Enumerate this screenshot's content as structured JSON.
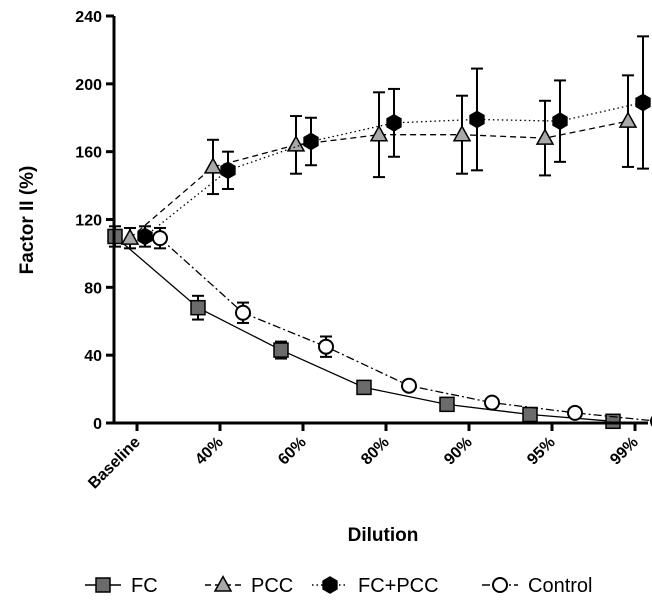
{
  "chart_data": {
    "type": "line",
    "title": "",
    "xlabel": "Dilution",
    "ylabel": "Factor II (%)",
    "ylim": [
      0,
      240
    ],
    "yticks": [
      "0",
      "40",
      "80",
      "120",
      "160",
      "200",
      "240"
    ],
    "categories": [
      "Baseline",
      "40%",
      "60%",
      "80%",
      "90%",
      "95%",
      "99%"
    ],
    "grid": false,
    "legend_position": "bottom",
    "series": [
      {
        "name": "FC",
        "marker": "square",
        "fill": "#6b6b6b",
        "dash": "solid",
        "values": [
          110,
          68,
          43,
          21,
          11,
          5,
          1
        ],
        "errors": [
          6,
          7,
          5,
          2,
          2,
          2,
          1
        ]
      },
      {
        "name": "PCC",
        "marker": "triangle",
        "fill": "#a8a8a8",
        "dash": "dashed",
        "values": [
          109,
          151,
          164,
          170,
          170,
          168,
          178
        ],
        "errors": [
          6,
          16,
          17,
          25,
          23,
          22,
          27
        ]
      },
      {
        "name": "FC+PCC",
        "marker": "hexagon",
        "fill": "#000000",
        "dash": "dotted",
        "values": [
          110,
          149,
          166,
          177,
          179,
          178,
          189
        ],
        "errors": [
          6,
          11,
          14,
          20,
          30,
          24,
          39
        ]
      },
      {
        "name": "Control",
        "marker": "circle",
        "fill": "#ffffff",
        "dash": "dashdot",
        "values": [
          109,
          65,
          45,
          22,
          12,
          6,
          1
        ],
        "errors": [
          6,
          6,
          6,
          2,
          2,
          1,
          1
        ]
      }
    ]
  }
}
